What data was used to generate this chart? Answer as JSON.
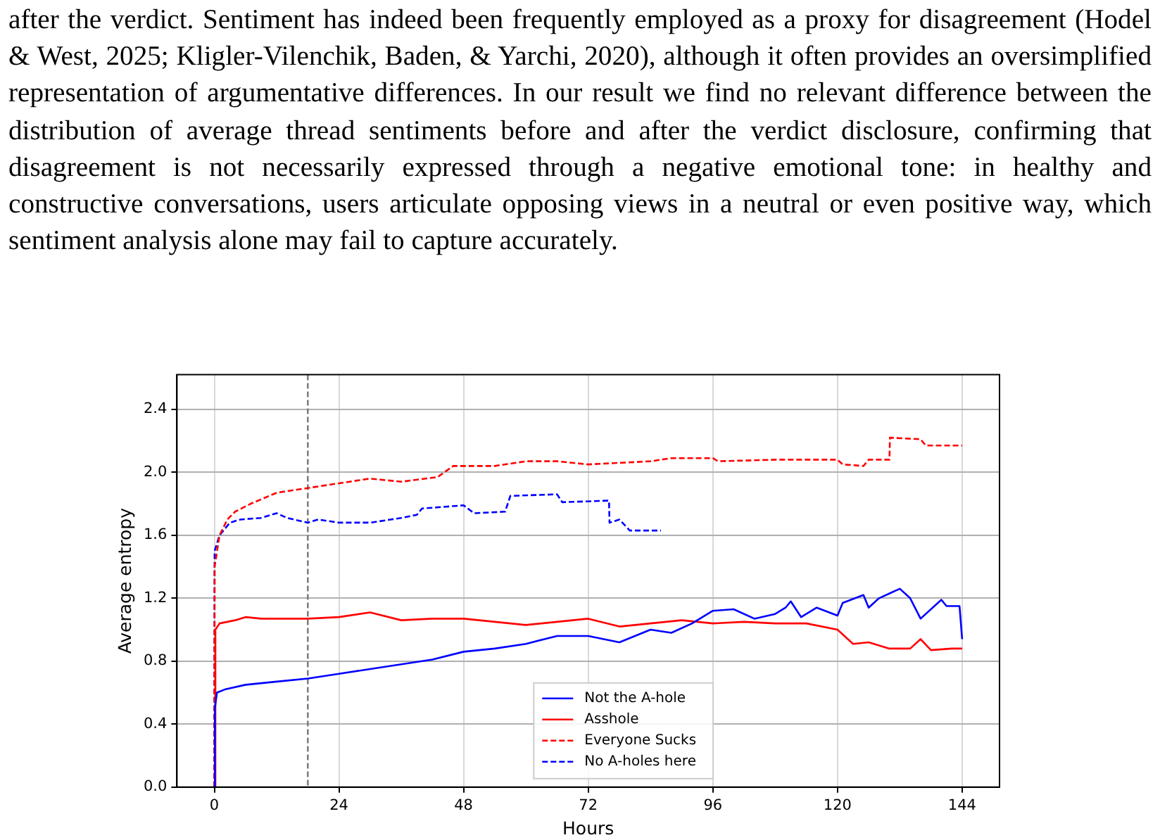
{
  "chart_data": {
    "type": "line",
    "xlabel": "Hours",
    "ylabel": "Average entropy",
    "annotations": [
      "after the verdict. Sentiment has indeed been frequently employed as a proxy for disagreement (Hodel & West, 2025; Kligler-Vilenchik, Baden, & Yarchi, 2020), although it often provides an oversimplified representation of argumentative differences. In our result we find no relevant difference between the distribution of average thread sentiments before and after the verdict disclosure, confirming that disagreement is not necessarily expressed through a negative emotional tone: in healthy and constructive conversations, users articulate opposing views in a neutral or even positive way, which sentiment analysis alone may fail to capture accurately."
    ],
    "xlim": [
      -7.2,
      151.2
    ],
    "xticks": [
      0,
      24,
      48,
      72,
      96,
      120,
      144
    ],
    "ylim": [
      0,
      2.62
    ],
    "yticks": [
      {
        "value": 0,
        "label": "0.0"
      },
      0.4,
      0.8,
      1.2,
      1.6,
      {
        "value": 2,
        "label": "2.0"
      },
      2.4
    ],
    "grid": true,
    "legend": "bottom",
    "marker": "none",
    "ref_lines": [
      {
        "axis": "x",
        "value": 18,
        "color": "#808080",
        "line_style": "dashed"
      }
    ],
    "series": [
      {
        "name": "Not the A-hole",
        "color": "#0000ff",
        "line_style": "solid",
        "x": [
          0,
          0.1,
          0.5,
          2,
          6,
          12,
          18,
          24,
          30,
          36,
          42,
          48,
          54,
          60,
          66,
          72,
          78,
          84,
          88,
          92,
          96,
          100,
          104,
          108,
          110,
          111,
          113,
          116,
          120,
          121,
          125,
          126,
          128,
          132,
          134,
          136,
          140,
          141,
          143.5,
          144
        ],
        "values": [
          0,
          0.5,
          0.6,
          0.62,
          0.65,
          0.67,
          0.69,
          0.72,
          0.75,
          0.78,
          0.81,
          0.86,
          0.88,
          0.91,
          0.96,
          0.96,
          0.92,
          1.0,
          0.98,
          1.04,
          1.12,
          1.13,
          1.07,
          1.1,
          1.14,
          1.18,
          1.08,
          1.14,
          1.09,
          1.17,
          1.22,
          1.14,
          1.2,
          1.26,
          1.2,
          1.07,
          1.19,
          1.15,
          1.15,
          0.94
        ]
      },
      {
        "name": "Asshole",
        "color": "#ff0000",
        "line_style": "solid",
        "x": [
          0,
          0.2,
          1,
          4,
          6,
          9,
          18,
          24,
          30,
          36,
          42,
          48,
          54,
          60,
          66,
          72,
          78,
          84,
          90,
          96,
          102,
          108,
          114,
          120,
          123,
          126,
          130,
          134,
          136,
          138,
          142,
          144
        ],
        "values": [
          0,
          1.0,
          1.04,
          1.06,
          1.08,
          1.07,
          1.07,
          1.08,
          1.11,
          1.06,
          1.07,
          1.07,
          1.05,
          1.03,
          1.05,
          1.07,
          1.02,
          1.04,
          1.06,
          1.04,
          1.05,
          1.04,
          1.04,
          1.0,
          0.91,
          0.92,
          0.88,
          0.88,
          0.94,
          0.87,
          0.88,
          0.88
        ]
      },
      {
        "name": "Everyone Sucks",
        "color": "#ff0000",
        "line_style": "dashed",
        "x": [
          0,
          0.05,
          1,
          2.5,
          4,
          7,
          12,
          18,
          24,
          30,
          36,
          43,
          46,
          54,
          60,
          66,
          72,
          84,
          88,
          96,
          97,
          108,
          120,
          121,
          125,
          126,
          130,
          130.1,
          136,
          137,
          144
        ],
        "values": [
          0,
          1.4,
          1.6,
          1.7,
          1.75,
          1.8,
          1.87,
          1.9,
          1.93,
          1.96,
          1.94,
          1.97,
          2.04,
          2.04,
          2.07,
          2.07,
          2.05,
          2.07,
          2.09,
          2.09,
          2.07,
          2.08,
          2.08,
          2.05,
          2.04,
          2.08,
          2.08,
          2.22,
          2.21,
          2.17,
          2.17
        ]
      },
      {
        "name": "No A-holes here",
        "color": "#0000ff",
        "line_style": "dashed",
        "x": [
          0,
          0.05,
          1,
          3,
          5,
          9,
          12,
          14,
          18,
          20,
          24,
          30,
          36,
          39,
          40,
          48,
          50,
          56,
          57,
          66,
          67,
          76,
          76.1,
          78,
          80,
          84,
          86
        ],
        "values": [
          0,
          1.5,
          1.6,
          1.68,
          1.7,
          1.71,
          1.74,
          1.71,
          1.68,
          1.7,
          1.68,
          1.68,
          1.71,
          1.73,
          1.77,
          1.79,
          1.74,
          1.75,
          1.85,
          1.86,
          1.81,
          1.82,
          1.68,
          1.7,
          1.63,
          1.63,
          1.63
        ]
      }
    ]
  }
}
